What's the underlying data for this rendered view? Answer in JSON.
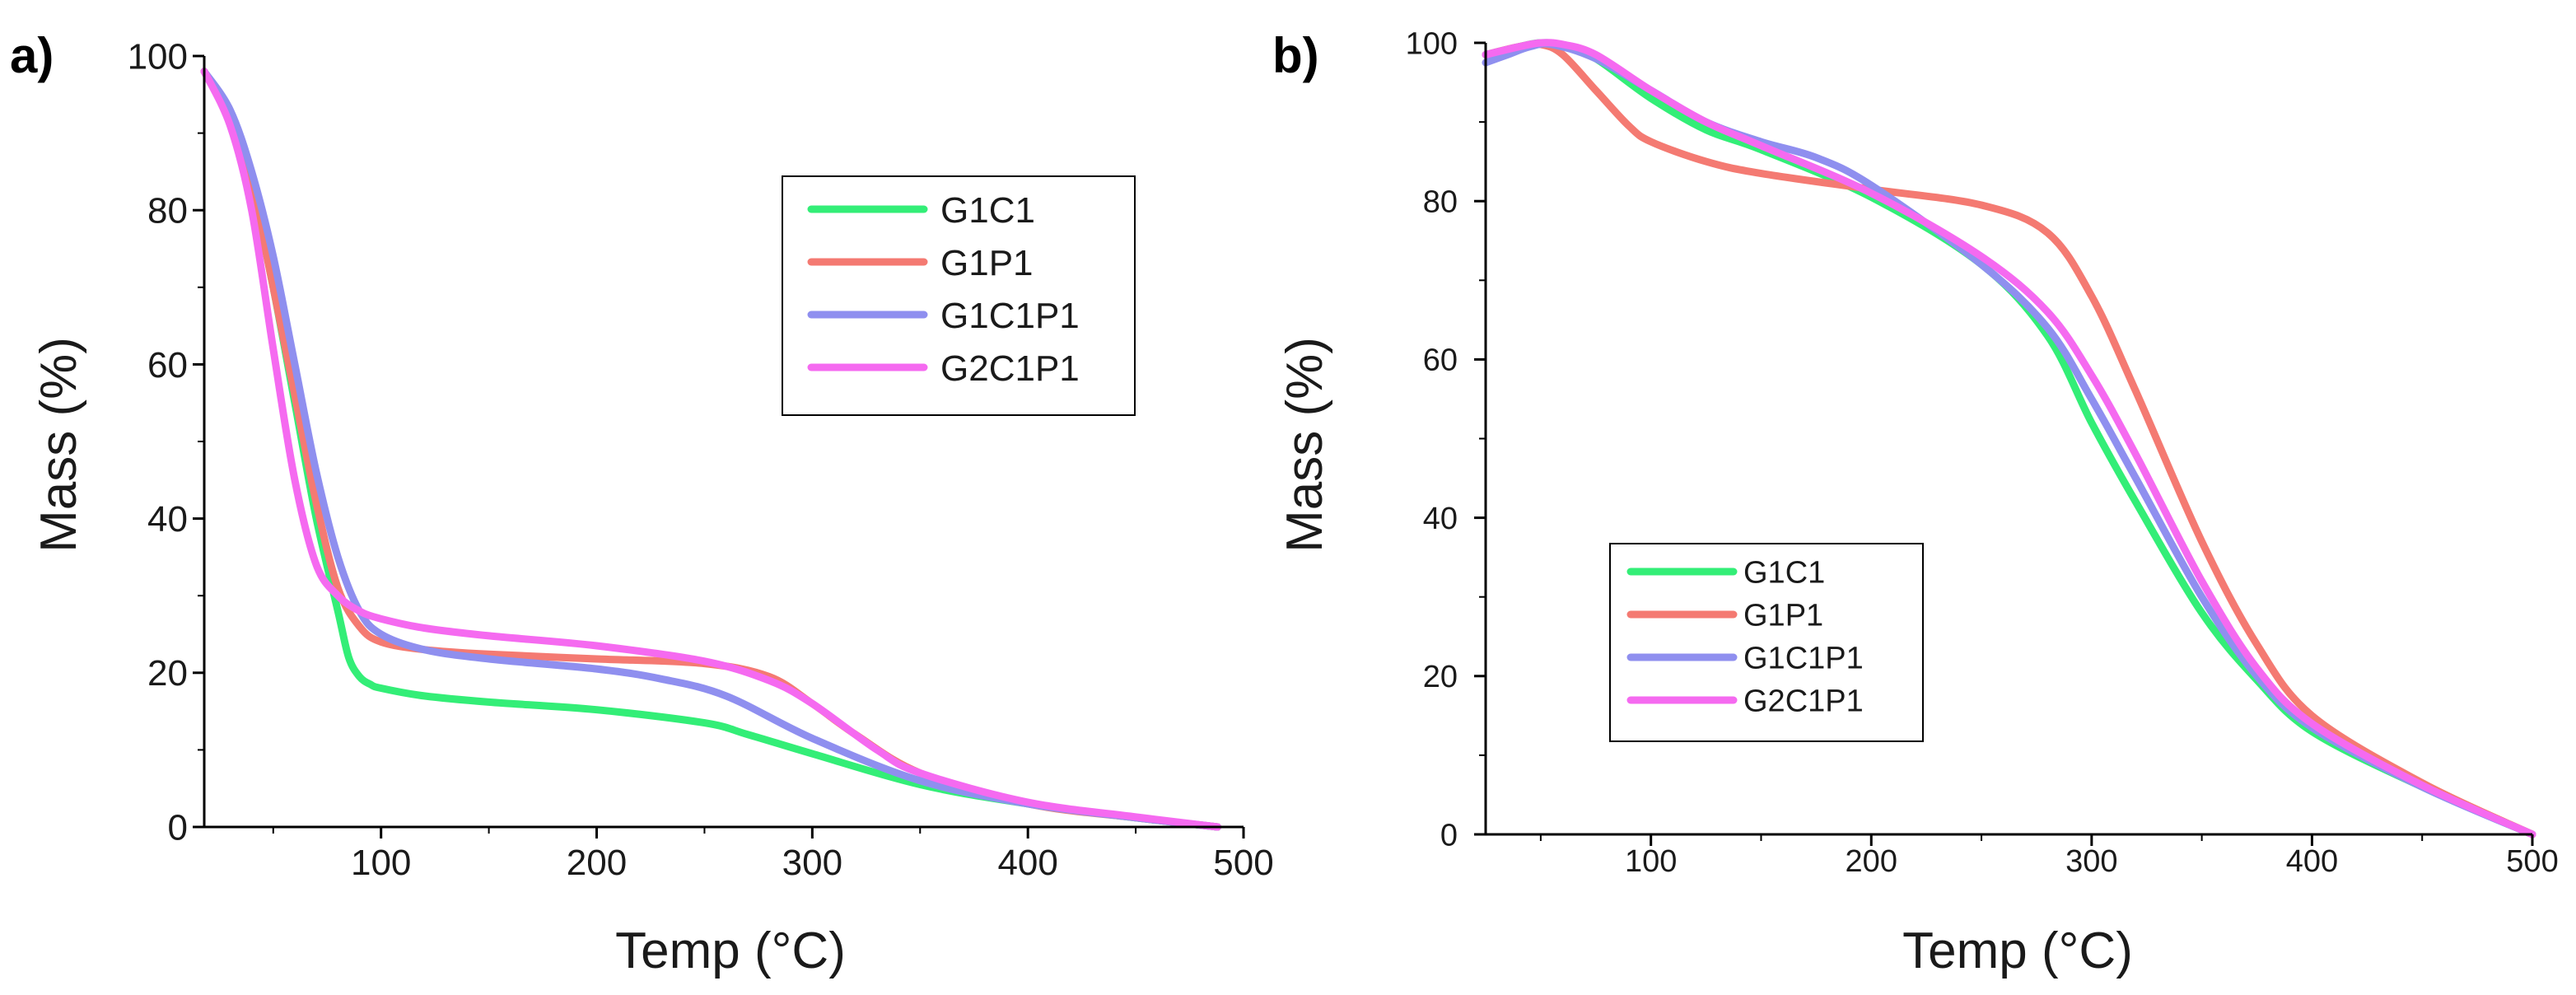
{
  "colors": {
    "G1C1": "#33ee77",
    "G1P1": "#f47a72",
    "G1C1P1": "#8f8fef",
    "G2C1P1": "#f56af0",
    "axis": "#000000"
  },
  "chart_data": [
    {
      "panel_label": "a)",
      "type": "line",
      "xlabel": "Temp (°C)",
      "ylabel": "Mass (%)",
      "xlim": [
        18,
        500
      ],
      "ylim": [
        0,
        100
      ],
      "xticks": [
        100,
        200,
        300,
        400,
        500
      ],
      "yticks": [
        0,
        20,
        40,
        60,
        80,
        100
      ],
      "grid": false,
      "legend_position": "upper-right",
      "series": [
        {
          "name": "G1C1",
          "color": "#33ee77",
          "x": [
            18,
            30,
            40,
            50,
            60,
            70,
            80,
            85,
            90,
            95,
            100,
            120,
            150,
            200,
            250,
            270,
            300,
            350,
            400,
            450,
            488
          ],
          "y": [
            98,
            92,
            83,
            70,
            55,
            40,
            28,
            22,
            19.5,
            18.5,
            18,
            17,
            16.2,
            15.2,
            13.5,
            12,
            9.5,
            5.5,
            3,
            1.2,
            0
          ]
        },
        {
          "name": "G1P1",
          "color": "#f47a72",
          "x": [
            18,
            30,
            40,
            50,
            60,
            70,
            80,
            90,
            100,
            120,
            150,
            200,
            250,
            280,
            300,
            320,
            350,
            400,
            450,
            488
          ],
          "y": [
            98,
            92,
            83,
            70,
            56,
            42,
            31,
            26,
            24,
            23,
            22.4,
            21.8,
            21.2,
            19.5,
            16,
            12,
            7,
            3,
            1.2,
            0
          ]
        },
        {
          "name": "G1C1P1",
          "color": "#8f8fef",
          "x": [
            18,
            30,
            40,
            50,
            60,
            70,
            80,
            90,
            100,
            120,
            150,
            200,
            230,
            260,
            300,
            350,
            400,
            450,
            488
          ],
          "y": [
            98,
            93,
            85,
            74,
            60,
            46,
            35,
            28,
            25,
            23,
            21.8,
            20.5,
            19.2,
            17,
            11.5,
            6,
            3,
            1.2,
            0
          ]
        },
        {
          "name": "G2C1P1",
          "color": "#f56af0",
          "x": [
            18,
            30,
            40,
            50,
            60,
            70,
            80,
            90,
            100,
            120,
            150,
            200,
            250,
            280,
            300,
            330,
            350,
            400,
            450,
            488
          ],
          "y": [
            98,
            91,
            80,
            62,
            45,
            34,
            30,
            28,
            27,
            25.8,
            24.8,
            23.5,
            21.5,
            19,
            16,
            10,
            7,
            3.2,
            1.3,
            0
          ]
        }
      ]
    },
    {
      "panel_label": "b)",
      "type": "line",
      "xlabel": "Temp (°C)",
      "ylabel": "Mass (%)",
      "xlim": [
        25,
        500
      ],
      "ylim": [
        0,
        100
      ],
      "xticks": [
        100,
        200,
        300,
        400,
        500
      ],
      "yticks": [
        0,
        20,
        40,
        60,
        80,
        100
      ],
      "grid": false,
      "legend_position": "lower-left",
      "series": [
        {
          "name": "G1C1",
          "color": "#33ee77",
          "x": [
            25,
            40,
            50,
            60,
            75,
            100,
            125,
            150,
            200,
            250,
            280,
            300,
            320,
            350,
            375,
            400,
            450,
            500
          ],
          "y": [
            98.5,
            99.5,
            100,
            99.7,
            98,
            93,
            89,
            86.5,
            80.5,
            72,
            63,
            52,
            42,
            28,
            19.5,
            13,
            6,
            0
          ]
        },
        {
          "name": "G1P1",
          "color": "#f47a72",
          "x": [
            25,
            40,
            50,
            60,
            75,
            90,
            100,
            125,
            150,
            200,
            250,
            280,
            300,
            320,
            350,
            375,
            400,
            450,
            500
          ],
          "y": [
            98.5,
            99.5,
            99.8,
            98.5,
            94,
            89.5,
            87.5,
            85,
            83.5,
            81.5,
            79.5,
            76,
            68,
            56,
            37,
            24,
            15,
            6.5,
            0
          ]
        },
        {
          "name": "G1C1P1",
          "color": "#8f8fef",
          "x": [
            25,
            35,
            45,
            55,
            75,
            100,
            125,
            150,
            175,
            200,
            250,
            280,
            300,
            320,
            350,
            375,
            400,
            450,
            500
          ],
          "y": [
            97.5,
            98.5,
            99.5,
            99.8,
            98,
            94,
            90,
            87.5,
            85.5,
            82,
            72,
            64,
            55,
            45,
            30,
            20,
            13.5,
            6,
            0
          ]
        },
        {
          "name": "G2C1P1",
          "color": "#f56af0",
          "x": [
            25,
            40,
            50,
            60,
            75,
            100,
            125,
            150,
            200,
            250,
            280,
            300,
            320,
            350,
            375,
            400,
            450,
            500
          ],
          "y": [
            98.5,
            99.5,
            100,
            99.8,
            98.5,
            94,
            90,
            87,
            81,
            73,
            66,
            58,
            48,
            32,
            21,
            14,
            6.2,
            0
          ]
        }
      ]
    }
  ]
}
